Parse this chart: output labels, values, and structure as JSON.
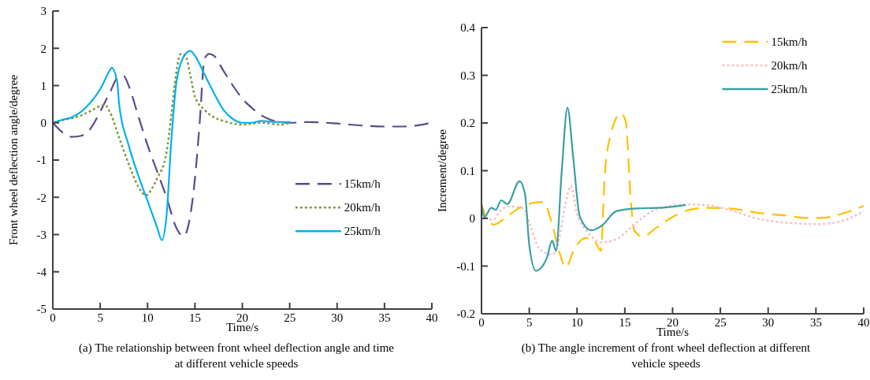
{
  "chart_data": [
    {
      "type": "line",
      "title": "(a) The relationship between front wheel deflection angle and time at different vehicle speeds",
      "xlabel": "Time/s",
      "ylabel": "Front wheel deflection angle/degree",
      "xlim": [
        0,
        40
      ],
      "ylim": [
        -5,
        3
      ],
      "xticks": [
        0,
        5,
        10,
        15,
        20,
        25,
        30,
        35,
        40
      ],
      "yticks": [
        -5,
        -4,
        -3,
        -2,
        -1,
        0,
        1,
        2,
        3
      ],
      "grid": false,
      "legend": "right",
      "series": [
        {
          "name": "15km/h",
          "color": "#5b4a8b",
          "line_style": "dashed",
          "x": [
            0,
            1,
            2,
            3,
            4,
            5,
            6,
            7,
            7.5,
            8,
            9,
            10,
            11,
            12,
            13,
            13.8,
            14.5,
            15,
            15.5,
            16,
            16.5,
            17,
            18,
            19,
            20,
            21,
            22,
            23,
            24,
            25,
            27,
            30,
            33,
            35,
            37,
            39,
            40
          ],
          "values": [
            0,
            -0.25,
            -0.38,
            -0.35,
            -0.15,
            0.3,
            0.8,
            1.25,
            1.25,
            1.0,
            0.2,
            -0.6,
            -1.3,
            -2.0,
            -2.8,
            -3.05,
            -2.5,
            -1.5,
            0,
            1.7,
            1.85,
            1.8,
            1.4,
            1.0,
            0.65,
            0.4,
            0.2,
            0.08,
            0.02,
            0,
            0.02,
            -0.02,
            -0.08,
            -0.1,
            -0.1,
            -0.05,
            0
          ]
        },
        {
          "name": "20km/h",
          "color": "#7f9a3b",
          "line_style": "dotted",
          "x": [
            0,
            1,
            2,
            3,
            4,
            5,
            5.5,
            6,
            7,
            8,
            9,
            9.8,
            10.5,
            11,
            12,
            12.5,
            13,
            13.5,
            14,
            14.5,
            15,
            16,
            17,
            18,
            20,
            22,
            24,
            25
          ],
          "values": [
            0,
            0.07,
            0.12,
            0.2,
            0.32,
            0.45,
            0.48,
            0.3,
            -0.4,
            -1.1,
            -1.7,
            -1.95,
            -1.75,
            -1.5,
            -0.8,
            0.2,
            1.3,
            1.85,
            1.8,
            1.3,
            0.7,
            0.35,
            0.15,
            0.05,
            -0.05,
            0,
            -0.05,
            0
          ]
        },
        {
          "name": "25km/h",
          "color": "#00b0f0",
          "line_style": "solid",
          "x": [
            0,
            1,
            2,
            3,
            4,
            5,
            6,
            6.2,
            6.8,
            7,
            8,
            9,
            10,
            11,
            11.5,
            12,
            12.5,
            13,
            13.5,
            14,
            14.5,
            15,
            16,
            17,
            18,
            19,
            20,
            21,
            22,
            23,
            25
          ],
          "values": [
            0,
            0.08,
            0.15,
            0.3,
            0.55,
            0.9,
            1.4,
            1.48,
            1.1,
            0.5,
            -0.6,
            -1.4,
            -2.1,
            -2.8,
            -3.15,
            -2.5,
            -0.5,
            1.0,
            1.6,
            1.85,
            1.93,
            1.8,
            1.3,
            0.8,
            0.35,
            0.1,
            0,
            0,
            0.05,
            0.03,
            0.02
          ]
        }
      ]
    },
    {
      "type": "line",
      "title": "(b) The angle increment of front wheel deflection at different vehicle speeds",
      "xlabel": "Time/s",
      "ylabel": "Increment/degree",
      "xlim": [
        0,
        40
      ],
      "ylim": [
        -0.2,
        0.4
      ],
      "xticks": [
        0,
        5,
        10,
        15,
        20,
        25,
        30,
        35,
        40
      ],
      "yticks": [
        {
          "value": -0.2,
          "label": "-0.2"
        },
        {
          "value": -0.1,
          "label": "-0.1"
        },
        0,
        0.1,
        0.2,
        0.3,
        0.4
      ],
      "grid": false,
      "legend": "top right",
      "series": [
        {
          "name": "15km/h",
          "color": "#ffc000",
          "line_style": "dashed",
          "x": [
            0,
            0.6,
            1.3,
            2.6,
            3.8,
            5.3,
            6.5,
            7.35,
            8.2,
            8.8,
            9.7,
            10.9,
            11.8,
            12.5,
            12.9,
            13.5,
            14.6,
            15.1,
            15.6,
            16,
            16.9,
            18.2,
            20,
            21.8,
            23.5,
            25.9,
            28.8,
            31.8,
            34.1,
            35.6,
            37.6,
            40
          ],
          "values": [
            0.03,
            -0.003,
            -0.013,
            0.003,
            0.02,
            0.032,
            0.034,
            -0.009,
            -0.074,
            -0.103,
            -0.065,
            -0.041,
            -0.047,
            -0.068,
            0.091,
            0.174,
            0.22,
            0.203,
            0.044,
            -0.026,
            -0.038,
            -0.021,
            0.003,
            0.018,
            0.022,
            0.021,
            0.012,
            0.006,
            0.001,
            0.001,
            0.009,
            0.026
          ]
        },
        {
          "name": "20km/h",
          "color": "#f4c2c2",
          "line_style": "dotted",
          "x": [
            0,
            1.2,
            2.06,
            2.9,
            4.4,
            5.1,
            6,
            7.35,
            7.9,
            8.8,
            9.35,
            10,
            11,
            12.6,
            14.1,
            16.2,
            18.2,
            21.5,
            23.5,
            25.9,
            28.8,
            31.8,
            35.3,
            37.6,
            40
          ],
          "values": [
            0.009,
            -0.003,
            0.018,
            0.025,
            0.021,
            -0.015,
            -0.062,
            -0.076,
            -0.062,
            0.032,
            0.068,
            0.009,
            -0.026,
            -0.05,
            -0.044,
            -0.009,
            0.018,
            0.029,
            0.028,
            0.018,
            0,
            -0.009,
            -0.012,
            -0.006,
            0.015
          ]
        },
        {
          "name": "25km/h",
          "color": "#3a9ea5",
          "line_style": "solid",
          "x": [
            0,
            0.3,
            1.03,
            1.5,
            2.06,
            2.7,
            3.97,
            4.56,
            5,
            5.7,
            6.8,
            7.4,
            7.8,
            8.4,
            9,
            9.6,
            10.3,
            11.5,
            12.6,
            14.1,
            16.2,
            18.5,
            21.3
          ],
          "values": [
            0.03,
            0.003,
            0.022,
            0.018,
            0.038,
            0.03,
            0.078,
            0.05,
            -0.056,
            -0.11,
            -0.085,
            -0.047,
            -0.068,
            0.1,
            0.232,
            0.127,
            0.003,
            -0.025,
            -0.015,
            0.015,
            0.021,
            0.022,
            0.028
          ]
        }
      ]
    }
  ]
}
